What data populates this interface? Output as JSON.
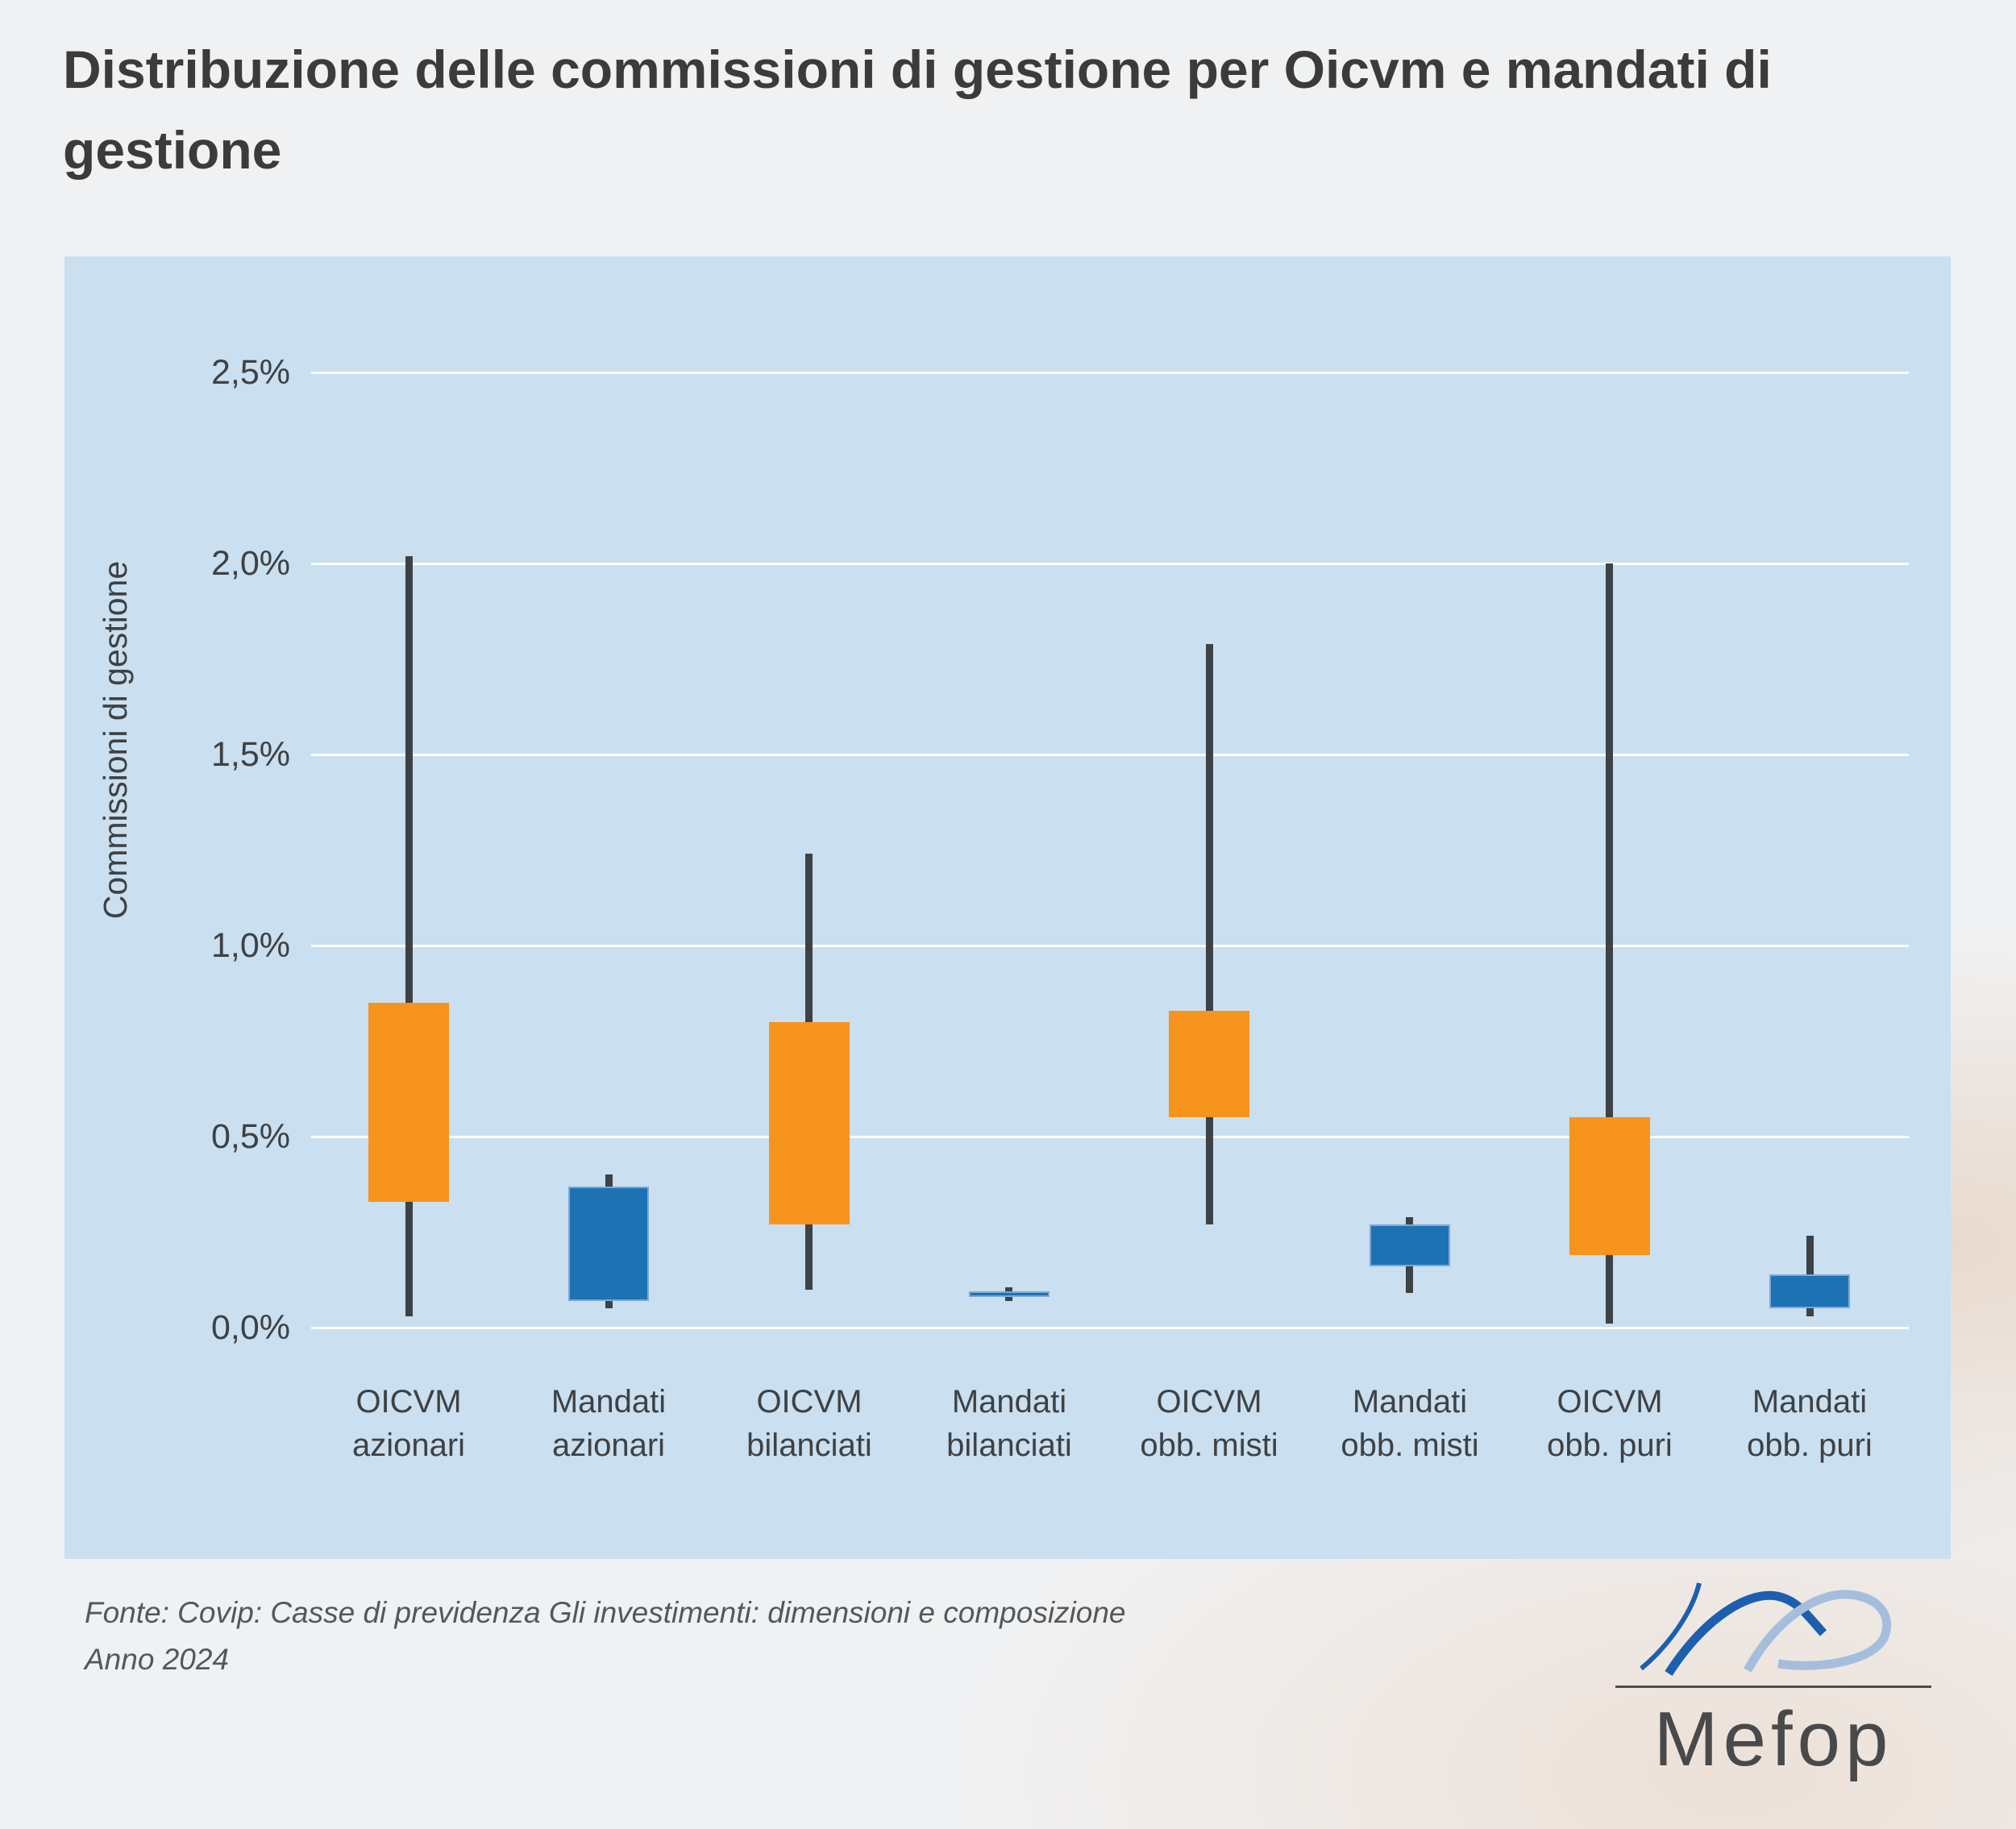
{
  "title": {
    "full": "Distribuzione delle commissioni di gestione per Oicvm e mandati di gestione",
    "lines": [
      "Distribuzione delle commissioni di gestione per Oicvm e mandati di",
      "gestione"
    ]
  },
  "footer": {
    "line1": "Fonte: Covip: Casse di previdenza Gli investimenti: dimensioni e composizione",
    "line2": "Anno 2024"
  },
  "logo": {
    "text": "Mefop"
  },
  "colors": {
    "page_bg": "#f0f1f2",
    "panel_bg": "#cadfef",
    "gridline": "#ffffff",
    "oicvm_box": "#f7941d",
    "mandati_box": "#1d72b4",
    "mandati_box_border": "#7ea8d4",
    "whisker": "#3e4245",
    "title_text": "#3b3b3b",
    "axis_text": "#3e4144",
    "footer_text": "#55585b",
    "logo_dark_blue": "#1d5fae",
    "logo_light_blue": "#a6bedd",
    "logo_text": "#47494b",
    "logo_rule": "#4a4d4f"
  },
  "chart_data": {
    "type": "boxplot",
    "title": "Distribuzione delle commissioni di gestione per Oicvm e mandati di gestione",
    "xlabel": "",
    "ylabel": "Commissioni di gestione",
    "ylim": [
      0,
      2.5
    ],
    "grid": true,
    "legend": false,
    "unit": "%",
    "yticks": [
      {
        "label": "2,5%",
        "value": 2.5
      },
      {
        "label": "2,0%",
        "value": 2.0
      },
      {
        "label": "1,5%",
        "value": 1.5
      },
      {
        "label": "1,0%",
        "value": 1.0
      },
      {
        "label": "0,5%",
        "value": 0.5
      },
      {
        "label": "0,0%",
        "value": 0.0
      }
    ],
    "series_colors": {
      "oicvm": "#f7941d",
      "mandati": "#1d72b4"
    },
    "categories": [
      {
        "label": "OICVM azionari",
        "label_lines": [
          "OICVM",
          "azionari"
        ],
        "group": "oicvm",
        "min": 0.03,
        "q1": 0.33,
        "q3": 0.85,
        "max": 2.02
      },
      {
        "label": "Mandati azionari",
        "label_lines": [
          "Mandati",
          "azionari"
        ],
        "group": "mandati",
        "min": 0.05,
        "q1": 0.07,
        "q3": 0.37,
        "max": 0.4
      },
      {
        "label": "OICVM bilanciati",
        "label_lines": [
          "OICVM",
          "bilanciati"
        ],
        "group": "oicvm",
        "min": 0.1,
        "q1": 0.27,
        "q3": 0.8,
        "max": 1.24
      },
      {
        "label": "Mandati bilanciati",
        "label_lines": [
          "Mandati",
          "bilanciati"
        ],
        "group": "mandati",
        "min": 0.07,
        "q1": 0.08,
        "q3": 0.095,
        "max": 0.105
      },
      {
        "label": "OICVM obb. misti",
        "label_lines": [
          "OICVM",
          "obb. misti"
        ],
        "group": "oicvm",
        "min": 0.27,
        "q1": 0.55,
        "q3": 0.83,
        "max": 1.79
      },
      {
        "label": "Mandati obb. misti",
        "label_lines": [
          "Mandati",
          "obb. misti"
        ],
        "group": "mandati",
        "min": 0.09,
        "q1": 0.16,
        "q3": 0.27,
        "max": 0.29
      },
      {
        "label": "OICVM obb. puri",
        "label_lines": [
          "OICVM",
          "obb. puri"
        ],
        "group": "oicvm",
        "min": 0.01,
        "q1": 0.19,
        "q3": 0.55,
        "max": 2.0
      },
      {
        "label": "Mandati obb. puri",
        "label_lines": [
          "Mandati",
          "obb. puri"
        ],
        "group": "mandati",
        "min": 0.03,
        "q1": 0.05,
        "q3": 0.14,
        "max": 0.24
      }
    ]
  }
}
